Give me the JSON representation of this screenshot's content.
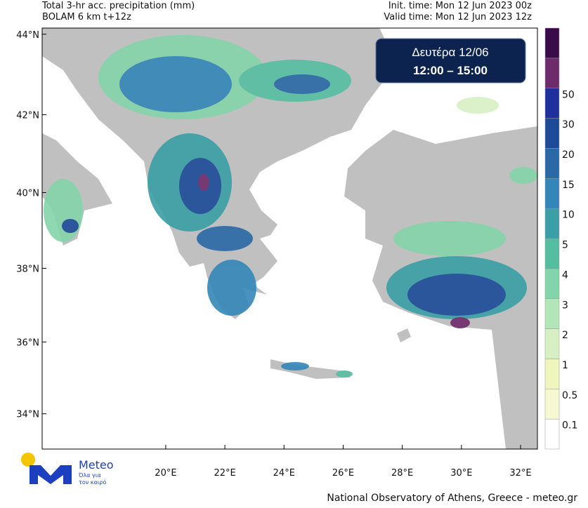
{
  "header": {
    "title": "Total 3-hr acc. precipitation (mm)",
    "model": "BOLAM 6 km t+12z",
    "init_time": "Init. time: Mon 12 Jun 2023 00z",
    "valid_time": "Valid time: Mon 12 Jun 2023 12z"
  },
  "info_box": {
    "day": "Δευτέρα 12/06",
    "hours": "12:00 – 15:00"
  },
  "map": {
    "lon_range": [
      15.82,
      32.57
    ],
    "lat_range": [
      33.0,
      44.15
    ],
    "lat_ticks": [
      {
        "value": 44,
        "label": "44°N"
      },
      {
        "value": 42,
        "label": "42°N"
      },
      {
        "value": 40,
        "label": "40°N"
      },
      {
        "value": 38,
        "label": "38°N"
      },
      {
        "value": 36,
        "label": "36°N"
      },
      {
        "value": 34,
        "label": "34°N"
      }
    ],
    "lon_ticks": [
      {
        "value": 20,
        "label": "20°E"
      },
      {
        "value": 22,
        "label": "22°E"
      },
      {
        "value": 24,
        "label": "24°E"
      },
      {
        "value": 26,
        "label": "26°E"
      },
      {
        "value": 28,
        "label": "28°E"
      },
      {
        "value": 30,
        "label": "30°E"
      },
      {
        "value": 32,
        "label": "32°E"
      }
    ]
  },
  "colorbar": {
    "levels": [
      "0.1",
      "0.5",
      "1",
      "2",
      "3",
      "4",
      "5",
      "10",
      "15",
      "20",
      "30",
      "50"
    ],
    "colors": [
      "#ffffff",
      "#f6f8d2",
      "#eef5bd",
      "#d6f0c4",
      "#b2e6b8",
      "#84d4aa",
      "#55bea0",
      "#3a9fa6",
      "#3386b8",
      "#2a69a6",
      "#1d4b97",
      "#1f2f9c",
      "#6e2b6c",
      "#3a0b4a"
    ]
  },
  "logo": {
    "name": "Meteo",
    "tagline1": "Όλα για",
    "tagline2": "τον καιρό"
  },
  "footer": "National Observatory of Athens, Greece - meteo.gr"
}
